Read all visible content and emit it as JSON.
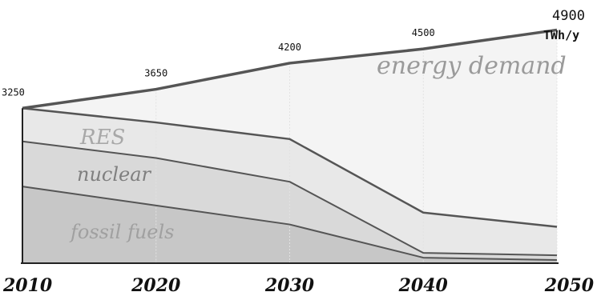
{
  "chart_data": {
    "type": "area",
    "x": [
      2010,
      2020,
      2030,
      2040,
      2050
    ],
    "x_tick_labels": [
      "2010",
      "2020",
      "2030",
      "2040",
      "2050"
    ],
    "unit": "TWh/y",
    "demand_labels": [
      "3250",
      "3650",
      "4200",
      "4500",
      "4900"
    ],
    "series": [
      {
        "name": "energy demand",
        "values": [
          3250,
          3650,
          4200,
          4500,
          4900
        ]
      },
      {
        "name": "RES",
        "values": [
          3250,
          2950,
          2600,
          1050,
          750
        ]
      },
      {
        "name": "nuclear",
        "values": [
          2550,
          2200,
          1700,
          200,
          150
        ]
      },
      {
        "name": "fossil fuels",
        "values": [
          1600,
          1200,
          800,
          100,
          50
        ]
      }
    ],
    "ylim": [
      0,
      5000
    ],
    "grid": "vertical",
    "colors": {
      "demand_fill": "#f4f4f4",
      "res_fill": "#e8e8e8",
      "nuclear_fill": "#d9d9d9",
      "fossil_fill": "#c7c7c7",
      "line": "#555555",
      "label": "#9a9a9a"
    }
  }
}
